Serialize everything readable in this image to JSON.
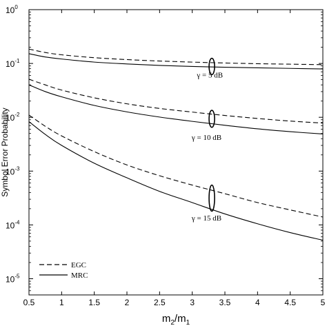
{
  "chart_data": {
    "type": "line",
    "title": "",
    "xlabel": {
      "main": "m",
      "sub1": "2",
      "sep": "/m",
      "sub2": "1"
    },
    "ylabel": "Symbol Error Probability",
    "xlim": [
      0.5,
      5
    ],
    "ylim": [
      5e-06,
      1
    ],
    "yscale": "log",
    "grid": false,
    "legend_position": "bottom-left",
    "x_ticks": [
      {
        "value": 0.5,
        "label": "0.5"
      },
      {
        "value": 1,
        "label": "1"
      },
      {
        "value": 1.5,
        "label": "1.5"
      },
      {
        "value": 2,
        "label": "2"
      },
      {
        "value": 2.5,
        "label": "2.5"
      },
      {
        "value": 3,
        "label": "3"
      },
      {
        "value": 3.5,
        "label": "3.5"
      },
      {
        "value": 4,
        "label": "4"
      },
      {
        "value": 4.5,
        "label": "4.5"
      },
      {
        "value": 5,
        "label": "5"
      }
    ],
    "y_ticks": [
      {
        "value": 1,
        "base": "10",
        "exp": "0"
      },
      {
        "value": 0.1,
        "base": "10",
        "exp": "-1"
      },
      {
        "value": 0.01,
        "base": "10",
        "exp": "-2"
      },
      {
        "value": 0.001,
        "base": "10",
        "exp": "-3"
      },
      {
        "value": 0.0001,
        "base": "10",
        "exp": "-4"
      },
      {
        "value": 1e-05,
        "base": "10",
        "exp": "-5"
      }
    ],
    "x": [
      0.5,
      0.75,
      1,
      1.5,
      2,
      2.5,
      3,
      3.5,
      4,
      4.5,
      5
    ],
    "series": [
      {
        "legend": "EGC",
        "style": "dashed",
        "group": "5dB",
        "values": [
          0.185,
          0.16,
          0.145,
          0.128,
          0.118,
          0.111,
          0.106,
          0.102,
          0.099,
          0.097,
          0.095
        ]
      },
      {
        "legend": "MRC",
        "style": "solid",
        "group": "5dB",
        "values": [
          0.152,
          0.132,
          0.121,
          0.106,
          0.098,
          0.092,
          0.088,
          0.085,
          0.083,
          0.081,
          0.079
        ]
      },
      {
        "legend": "EGC",
        "style": "dashed",
        "group": "10dB",
        "values": [
          0.051,
          0.04,
          0.032,
          0.023,
          0.0178,
          0.0146,
          0.0125,
          0.0108,
          0.0095,
          0.0085,
          0.0078
        ]
      },
      {
        "legend": "MRC",
        "style": "solid",
        "group": "10dB",
        "values": [
          0.04,
          0.03,
          0.024,
          0.0166,
          0.0126,
          0.0101,
          0.0084,
          0.0071,
          0.0061,
          0.0054,
          0.0049
        ]
      },
      {
        "legend": "EGC",
        "style": "dashed",
        "group": "15dB",
        "values": [
          0.011,
          0.0068,
          0.0045,
          0.0023,
          0.0013,
          0.00082,
          0.00055,
          0.00038,
          0.00026,
          0.00019,
          0.00014
        ]
      },
      {
        "legend": "MRC",
        "style": "solid",
        "group": "15dB",
        "values": [
          0.0083,
          0.0048,
          0.003,
          0.0014,
          0.00075,
          0.00042,
          0.00026,
          0.00016,
          0.000105,
          7.2e-05,
          5.2e-05
        ]
      }
    ],
    "annotations": [
      {
        "text": "γ = 5 dB",
        "x": 3.27,
        "y": 0.055,
        "ring_x": 3.3,
        "ring_y_high": 0.125,
        "ring_y_low": 0.062
      },
      {
        "text": "γ = 10 dB",
        "x": 3.22,
        "y": 0.0038,
        "ring_x": 3.3,
        "ring_y_high": 0.0135,
        "ring_y_low": 0.0065
      },
      {
        "text": "γ = 15 dB",
        "x": 3.22,
        "y": 0.00012,
        "ring_x": 3.3,
        "ring_y_high": 0.00055,
        "ring_y_low": 0.00018
      }
    ],
    "legend": [
      {
        "label": "EGC",
        "style": "dashed"
      },
      {
        "label": "MRC",
        "style": "solid"
      }
    ]
  }
}
